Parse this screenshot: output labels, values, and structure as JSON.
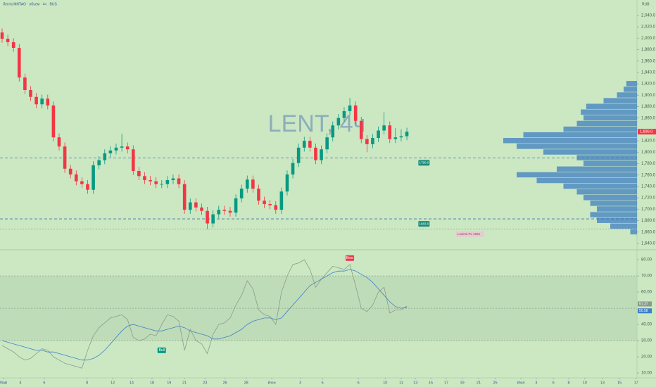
{
  "chart_data": [
    {
      "type": "candlestick",
      "title": "Лента МКПАО · объем · 4ч · BUS",
      "currency": "RUB",
      "watermark": "LENT, 4ч",
      "up_color": "#089981",
      "down_color": "#f23645",
      "xlim": [
        -0.37,
        114.7
      ],
      "ylim": [
        1630,
        2067
      ],
      "yticks": [
        {
          "value": 2040,
          "label": "2,040.0"
        },
        {
          "value": 2020,
          "label": "2,020.0"
        },
        {
          "value": 2000,
          "label": "2,000.0"
        },
        {
          "value": 1980,
          "label": "1,980.0"
        },
        {
          "value": 1960,
          "label": "1,960.0"
        },
        {
          "value": 1940,
          "label": "1,940.0"
        },
        {
          "value": 1920,
          "label": "1,920.0"
        },
        {
          "value": 1900,
          "label": "1,900.0"
        },
        {
          "value": 1880,
          "label": "1,880.0"
        },
        {
          "value": 1860,
          "label": "1,860.0"
        },
        {
          "value": 1820,
          "label": "1,820.0"
        },
        {
          "value": 1800,
          "label": "1,800.0"
        },
        {
          "value": 1780,
          "label": "1,780.0"
        },
        {
          "value": 1760,
          "label": "1,760.0"
        },
        {
          "value": 1740,
          "label": "1,740.0"
        },
        {
          "value": 1720,
          "label": "1,720.0"
        },
        {
          "value": 1700,
          "label": "1,700.0"
        },
        {
          "value": 1680,
          "label": "1,680.0"
        },
        {
          "value": 1660,
          "label": "1,660.0"
        },
        {
          "value": 1640,
          "label": "1,640.0"
        }
      ],
      "last_price": {
        "value": 1836,
        "label": "1,836.0"
      },
      "open": [
        2010,
        1999,
        1993,
        1983,
        1931,
        1909,
        1897,
        1884,
        1894,
        1882,
        1826,
        1810,
        1771,
        1761,
        1749,
        1744,
        1734,
        1777,
        1786,
        1798,
        1803,
        1808,
        1810,
        1805,
        1767,
        1758,
        1751,
        1749,
        1744,
        1744,
        1751,
        1754,
        1744,
        1699,
        1712,
        1703,
        1697,
        1675,
        1691,
        1699,
        1697,
        1694,
        1719,
        1736,
        1752,
        1736,
        1715,
        1709,
        1707,
        1699,
        1731,
        1761,
        1781,
        1808,
        1820,
        1808,
        1786,
        1805,
        1826,
        1847,
        1860,
        1872,
        1882,
        1855,
        1823,
        1814,
        1825,
        1838,
        1847,
        1823,
        1826,
        1828
      ],
      "high": [
        2017,
        2006,
        2000,
        1990,
        1938,
        1916,
        1904,
        1901,
        1901,
        1889,
        1833,
        1817,
        1778,
        1768,
        1756,
        1751,
        1784,
        1793,
        1805,
        1810,
        1815,
        1832,
        1817,
        1812,
        1774,
        1765,
        1758,
        1756,
        1751,
        1758,
        1761,
        1761,
        1751,
        1719,
        1719,
        1710,
        1704,
        1698,
        1706,
        1706,
        1704,
        1726,
        1743,
        1759,
        1759,
        1743,
        1722,
        1716,
        1714,
        1738,
        1768,
        1788,
        1815,
        1827,
        1827,
        1815,
        1812,
        1833,
        1854,
        1867,
        1879,
        1895,
        1889,
        1862,
        1830,
        1832,
        1845,
        1870,
        1854,
        1842,
        1840,
        1843
      ],
      "low": [
        1992,
        1986,
        1976,
        1924,
        1902,
        1890,
        1877,
        1877,
        1875,
        1819,
        1803,
        1764,
        1754,
        1742,
        1737,
        1727,
        1727,
        1770,
        1779,
        1791,
        1796,
        1801,
        1798,
        1760,
        1751,
        1744,
        1742,
        1737,
        1737,
        1737,
        1744,
        1737,
        1692,
        1692,
        1696,
        1690,
        1665,
        1668,
        1684,
        1690,
        1687,
        1687,
        1712,
        1729,
        1729,
        1708,
        1702,
        1700,
        1692,
        1692,
        1724,
        1754,
        1774,
        1801,
        1801,
        1779,
        1779,
        1798,
        1819,
        1840,
        1853,
        1865,
        1848,
        1816,
        1800,
        1807,
        1818,
        1831,
        1816,
        1816,
        1819,
        1821
      ],
      "close": [
        1999,
        1993,
        1983,
        1931,
        1909,
        1897,
        1884,
        1894,
        1882,
        1826,
        1810,
        1771,
        1761,
        1749,
        1744,
        1734,
        1777,
        1786,
        1798,
        1803,
        1808,
        1810,
        1805,
        1767,
        1758,
        1751,
        1749,
        1744,
        1744,
        1751,
        1754,
        1744,
        1699,
        1712,
        1703,
        1697,
        1675,
        1691,
        1699,
        1697,
        1694,
        1719,
        1736,
        1752,
        1736,
        1715,
        1709,
        1707,
        1699,
        1731,
        1761,
        1781,
        1808,
        1820,
        1808,
        1786,
        1805,
        1826,
        1847,
        1860,
        1872,
        1882,
        1855,
        1823,
        1814,
        1825,
        1838,
        1847,
        1823,
        1826,
        1828,
        1836
      ],
      "levels": [
        {
          "value": 1790,
          "label": "1790.0",
          "x": 74
        },
        {
          "value": 1683,
          "label": "1683.0",
          "x": 74
        },
        {
          "value": 1665,
          "label": "Lowest PL 1665",
          "x": 80
        }
      ],
      "volume_profile": {
        "color": "#3d7fc1",
        "prices": [
          1660,
          1670,
          1680,
          1690,
          1700,
          1710,
          1720,
          1730,
          1740,
          1750,
          1760,
          1770,
          1780,
          1790,
          1800,
          1810,
          1820,
          1830,
          1840,
          1850,
          1860,
          1870,
          1880,
          1890,
          1900,
          1910,
          1920
        ],
        "values": [
          5,
          20,
          30,
          35,
          30,
          35,
          40,
          45,
          55,
          75,
          90,
          60,
          40,
          45,
          70,
          90,
          100,
          85,
          55,
          45,
          40,
          42,
          38,
          25,
          15,
          10,
          8
        ]
      }
    },
    {
      "type": "line",
      "xlim": [
        -0.37,
        114.7
      ],
      "ylim": [
        7,
        85.7
      ],
      "yticks": [
        {
          "value": 80,
          "label": "80.00"
        },
        {
          "value": 70,
          "label": "70.00"
        },
        {
          "value": 60,
          "label": "60.00"
        },
        {
          "value": 40,
          "label": "40.00"
        },
        {
          "value": 30,
          "label": "30.00"
        },
        {
          "value": 20,
          "label": "20.00"
        },
        {
          "value": 10,
          "label": "10.00"
        }
      ],
      "levels": [
        70,
        50,
        30
      ],
      "xticks": [
        {
          "value": 0.2,
          "label": "Май"
        },
        {
          "value": 3.2,
          "label": "4"
        },
        {
          "value": 7.4,
          "label": "6"
        },
        {
          "value": 14.9,
          "label": "8"
        },
        {
          "value": 19.4,
          "label": "12"
        },
        {
          "value": 22.7,
          "label": "14"
        },
        {
          "value": 26.3,
          "label": "18"
        },
        {
          "value": 29.3,
          "label": "19"
        },
        {
          "value": 32,
          "label": "21"
        },
        {
          "value": 35.6,
          "label": "23"
        },
        {
          "value": 39.1,
          "label": "26"
        },
        {
          "value": 42.8,
          "label": "28"
        },
        {
          "value": 47.3,
          "label": "Июн"
        },
        {
          "value": 52.3,
          "label": "3"
        },
        {
          "value": 56.2,
          "label": "5"
        },
        {
          "value": 62.5,
          "label": "6"
        },
        {
          "value": 67.2,
          "label": "10"
        },
        {
          "value": 70,
          "label": "11"
        },
        {
          "value": 72.5,
          "label": "13"
        },
        {
          "value": 75.2,
          "label": "15"
        },
        {
          "value": 77.9,
          "label": "17"
        },
        {
          "value": 80.7,
          "label": "19"
        },
        {
          "value": 83.6,
          "label": "21"
        },
        {
          "value": 86.5,
          "label": "25"
        },
        {
          "value": 91,
          "label": "Июл"
        },
        {
          "value": 93.7,
          "label": "3"
        },
        {
          "value": 96.7,
          "label": "6"
        },
        {
          "value": 99.4,
          "label": "8"
        },
        {
          "value": 102.2,
          "label": "10"
        },
        {
          "value": 105.3,
          "label": "13"
        },
        {
          "value": 108.3,
          "label": "15"
        },
        {
          "value": 111.2,
          "label": "17"
        }
      ],
      "series": [
        {
          "color": "#8a9a8a",
          "values": [
            27,
            25,
            23,
            20,
            18,
            19,
            22,
            25,
            24,
            20,
            18,
            16,
            15,
            14,
            13,
            24,
            33,
            38,
            41,
            44,
            45,
            46,
            43,
            32,
            30,
            31,
            34,
            33,
            40,
            46,
            45,
            42,
            24,
            37,
            30,
            28,
            22,
            34,
            40,
            41,
            44,
            52,
            58,
            67,
            62,
            49,
            46,
            45,
            40,
            60,
            70,
            77,
            78,
            80,
            74,
            63,
            68,
            72,
            76,
            75,
            74,
            77,
            64,
            50,
            48,
            52,
            60,
            63,
            47,
            49,
            49,
            51.37
          ]
        },
        {
          "color": "#3f7fc7",
          "values": [
            30,
            29,
            28,
            27,
            26,
            25,
            24,
            24,
            23,
            23,
            22,
            21,
            20,
            19,
            18,
            18,
            19,
            21,
            24,
            28,
            32,
            36,
            39,
            40,
            39,
            38,
            37,
            36,
            36,
            37,
            38,
            39,
            38,
            36,
            35,
            34,
            33,
            31,
            31,
            32,
            33,
            35,
            37,
            40,
            42,
            43,
            44,
            44,
            43,
            44,
            48,
            52,
            56,
            60,
            64,
            66,
            68,
            70,
            72,
            73,
            73,
            74,
            73,
            71,
            69,
            66,
            62,
            58,
            54,
            51,
            50,
            50.58
          ]
        }
      ],
      "annotations": [
        {
          "text": "Bull",
          "x": 28,
          "y": 24,
          "color": "#089981"
        },
        {
          "text": "Bear",
          "x": 61,
          "y": 81,
          "color": "#f23645"
        }
      ]
    }
  ]
}
